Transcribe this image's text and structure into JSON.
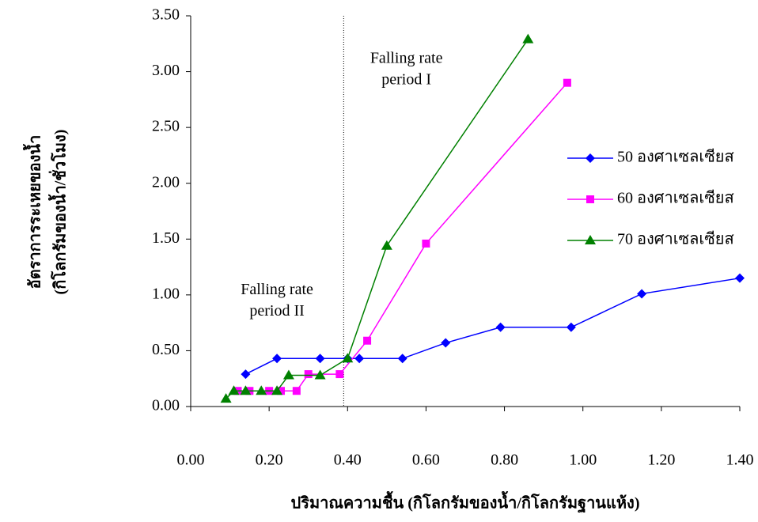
{
  "chart_data": {
    "type": "line",
    "y_label_lines": [
      "อัตราการระเหยของน้ำ",
      "(กิโลกรัมของน้ำ/ชั่วโมง)"
    ],
    "x_label": "ปริมาณความชื้น (กิโลกรัมของน้ำ/กิโลกรัมฐานแห้ง)",
    "annotations": [
      {
        "lines": [
          "Falling rate",
          "period I"
        ],
        "x": 0.55,
        "y": 3.11
      },
      {
        "lines": [
          "Falling rate",
          "period II"
        ],
        "x": 0.22,
        "y": 1.04
      }
    ],
    "vline": 0.39,
    "xlim": [
      0,
      1.4
    ],
    "ylim": [
      0,
      3.5
    ],
    "xticks": [
      {
        "value": 0,
        "label": "0.00"
      },
      {
        "value": 0.2,
        "label": "0.20"
      },
      {
        "value": 0.4,
        "label": "0.40"
      },
      {
        "value": 0.6,
        "label": "0.60"
      },
      {
        "value": 0.8,
        "label": "0.80"
      },
      {
        "value": 1.0,
        "label": "1.00"
      },
      {
        "value": 1.2,
        "label": "1.20"
      },
      {
        "value": 1.4,
        "label": "1.40"
      }
    ],
    "yticks": [
      {
        "value": 0,
        "label": "0.00"
      },
      {
        "value": 0.5,
        "label": "0.50"
      },
      {
        "value": 1.0,
        "label": "1.00"
      },
      {
        "value": 1.5,
        "label": "1.50"
      },
      {
        "value": 2.0,
        "label": "2.00"
      },
      {
        "value": 2.5,
        "label": "2.50"
      },
      {
        "value": 3.0,
        "label": "3.00"
      },
      {
        "value": 3.5,
        "label": "3.50"
      }
    ],
    "series": [
      {
        "name": "50 องศาเซลเซียส",
        "color": "#0000ff",
        "marker": "diamond",
        "x": [
          0.14,
          0.22,
          0.33,
          0.4,
          0.43,
          0.54,
          0.65,
          0.79,
          0.97,
          1.15,
          1.4
        ],
        "values": [
          0.29,
          0.43,
          0.43,
          0.43,
          0.43,
          0.43,
          0.57,
          0.71,
          0.71,
          1.01,
          1.15
        ]
      },
      {
        "name": "60 องศาเซลเซียส",
        "color": "#ff00ff",
        "marker": "square",
        "x": [
          0.12,
          0.15,
          0.2,
          0.23,
          0.27,
          0.3,
          0.38,
          0.45,
          0.6,
          0.96
        ],
        "values": [
          0.14,
          0.14,
          0.14,
          0.14,
          0.14,
          0.29,
          0.29,
          0.59,
          1.46,
          2.9
        ]
      },
      {
        "name": "70 องศาเซลเซียส",
        "color": "#008000",
        "marker": "triangle",
        "x": [
          0.09,
          0.11,
          0.14,
          0.18,
          0.22,
          0.25,
          0.33,
          0.4,
          0.5,
          0.86
        ],
        "values": [
          0.07,
          0.14,
          0.14,
          0.14,
          0.14,
          0.28,
          0.28,
          0.43,
          1.44,
          3.29
        ]
      }
    ]
  }
}
